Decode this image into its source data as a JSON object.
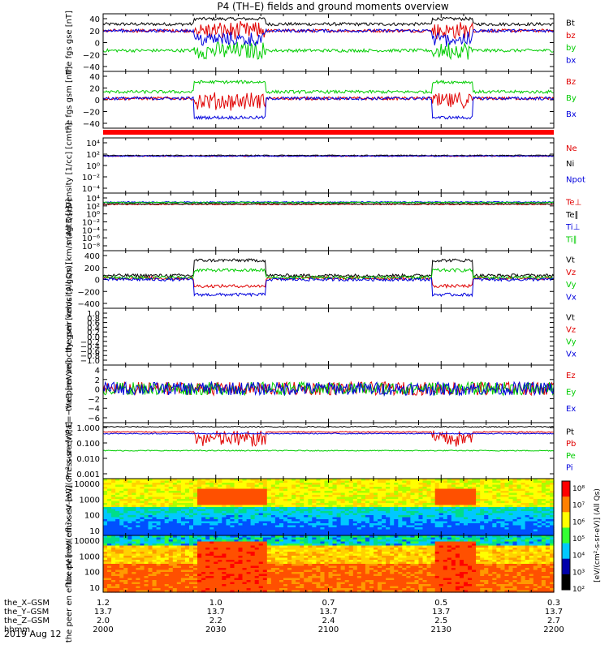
{
  "title": "P4 (TH–E) fields and ground moments overview",
  "date_label": "2019 Aug 12",
  "colorbar_label": "[eV/(cm²-s-sr-eV)] (All Qs)",
  "colorbar_ticks": [
    "10⁸",
    "10⁷",
    "10⁶",
    "10⁵",
    "10⁴",
    "10³",
    "10²"
  ],
  "colors": {
    "black": "#000000",
    "red": "#e00000",
    "green": "#00cc00",
    "blue": "#0000dd"
  },
  "x_axis": {
    "row_labels": [
      "the_X–GSM",
      "the_Y–GSM",
      "the_Z–GSM",
      "hhmm"
    ],
    "ticks": [
      {
        "x_gsm": "1.2",
        "y_gsm": "13.7",
        "z_gsm": "2.0",
        "hhmm": "2000"
      },
      {
        "x_gsm": "1.0",
        "y_gsm": "13.7",
        "z_gsm": "2.2",
        "hhmm": "2030"
      },
      {
        "x_gsm": "0.7",
        "y_gsm": "13.7",
        "z_gsm": "2.4",
        "hhmm": "2100"
      },
      {
        "x_gsm": "0.5",
        "y_gsm": "13.7",
        "z_gsm": "2.5",
        "hhmm": "2130"
      },
      {
        "x_gsm": "0.3",
        "y_gsm": "13.7",
        "z_gsm": "2.7",
        "hhmm": "2200"
      }
    ]
  },
  "chart_data": [
    {
      "type": "line",
      "ylabel": "the fgs gse [nT]",
      "yticks": [
        "40",
        "20",
        "0",
        "−20",
        "−40"
      ],
      "ylim": [
        -40,
        40
      ],
      "x_range_hhmm": [
        "2000",
        "2200"
      ],
      "series": [
        {
          "name": "Bt",
          "color": "black",
          "baseline": 28,
          "note": "~30 nT, spikes to ~40 at 2035 and 2135"
        },
        {
          "name": "bz",
          "color": "red",
          "baseline": 18
        },
        {
          "name": "by",
          "color": "green",
          "baseline": -12
        },
        {
          "name": "bx",
          "color": "blue",
          "baseline": 18
        }
      ]
    },
    {
      "type": "line",
      "ylabel": "the fgs gsm [nT]",
      "yticks": [
        "40",
        "20",
        "0",
        "−20",
        "−40"
      ],
      "ylim": [
        -50,
        45
      ],
      "series": [
        {
          "name": "Bz",
          "color": "red",
          "baseline": 0
        },
        {
          "name": "By",
          "color": "green",
          "baseline": 12,
          "note": "rises to ~35 at 2035–2050 and ~30 at 2135–2145"
        },
        {
          "name": "Bx",
          "color": "blue",
          "baseline": 0,
          "note": "drops to ~−40 at 2035–2050 and 2135–2145"
        }
      ]
    },
    {
      "type": "line",
      "ylabel": "Density [1/cc] [cm⁻³]",
      "yticks": [
        "10⁴",
        "10²",
        "10⁰",
        "10⁻²",
        "10⁻⁴"
      ],
      "ylim_log10": [
        -4,
        4
      ],
      "series": [
        {
          "name": "Ne",
          "color": "red",
          "log_baseline": 1.5
        },
        {
          "name": "Ni",
          "color": "black",
          "log_baseline": 1.6
        },
        {
          "name": "Npot",
          "color": "blue",
          "log_baseline": 1.5
        }
      ]
    },
    {
      "type": "line",
      "ylabel": "magt3 [eV]",
      "yticks": [
        "10⁴",
        "10²",
        "10⁰",
        "10⁻²",
        "10⁻⁴",
        "10⁻⁶",
        "10⁻⁸"
      ],
      "ylim_log10": [
        -8,
        4
      ],
      "series": [
        {
          "name": "Te⊥",
          "color": "red",
          "log_baseline": 2.0
        },
        {
          "name": "Te∥",
          "color": "black",
          "log_baseline": 2.1
        },
        {
          "name": "Ti⊥",
          "color": "blue",
          "log_baseline": 2.5
        },
        {
          "name": "Ti∥",
          "color": "green",
          "log_baseline": 2.4
        }
      ]
    },
    {
      "type": "line",
      "ylabel": "the peir velocity gsm [km/s (All Qs)]",
      "yticks": [
        "400",
        "200",
        "0",
        "−200",
        "−400"
      ],
      "ylim": [
        -400,
        400
      ],
      "series": [
        {
          "name": "Vt",
          "color": "black",
          "baseline": 60,
          "note": "~300 km/s at 2035–2050 and 2135–2145"
        },
        {
          "name": "Vz",
          "color": "red",
          "baseline": 20
        },
        {
          "name": "Vy",
          "color": "green",
          "baseline": 30
        },
        {
          "name": "Vx",
          "color": "blue",
          "baseline": 0,
          "note": "~−250 km/s at 2035–2050 and 2135–2145"
        }
      ]
    },
    {
      "type": "line",
      "ylabel": "the peer velocity gsm [km/s (All Qs)]",
      "yticks": [
        "1.0",
        "0.8",
        "0.6",
        "0.4",
        "0.2",
        "0.0",
        "−0.2",
        "−0.4",
        "−0.6",
        "−0.8",
        "−1.0"
      ],
      "ylim": [
        -1,
        1
      ],
      "series": [
        {
          "name": "Vt",
          "color": "black",
          "values": []
        },
        {
          "name": "Vz",
          "color": "red",
          "values": []
        },
        {
          "name": "Vy",
          "color": "green",
          "values": []
        },
        {
          "name": "Vx",
          "color": "blue",
          "values": []
        }
      ]
    },
    {
      "type": "line",
      "ylabel": "E=−VxB [mV/m]",
      "yticks": [
        "4",
        "2",
        "0",
        "−2",
        "−4",
        "−6"
      ],
      "ylim": [
        -6,
        4
      ],
      "series": [
        {
          "name": "Ez",
          "color": "red",
          "baseline": 0
        },
        {
          "name": "Ey",
          "color": "green",
          "baseline": 0
        },
        {
          "name": "Ex",
          "color": "blue",
          "baseline": 0
        }
      ]
    },
    {
      "type": "line",
      "ylabel": "Pressure [nPa]",
      "yticks": [
        "1.000",
        "0.100",
        "0.010",
        "0.001"
      ],
      "ylim_log10": [
        -3,
        0
      ],
      "series": [
        {
          "name": "Pt",
          "color": "black",
          "log_baseline": -0.1
        },
        {
          "name": "Pb",
          "color": "red",
          "log_baseline": -0.4
        },
        {
          "name": "Pe",
          "color": "green",
          "log_baseline": -1.5
        },
        {
          "name": "Pi",
          "color": "blue",
          "log_baseline": -0.5
        }
      ]
    },
    {
      "type": "heatmap",
      "ylabel": "the peir en eflux eV [eV/(cm²-s-sr-eV)]",
      "yticks": [
        "10000",
        "1000",
        "100",
        "10"
      ],
      "ylim_log10": [
        0.7,
        4.4
      ],
      "z_log10_range": [
        2,
        8
      ],
      "colormap": "rainbow"
    },
    {
      "type": "heatmap",
      "ylabel": "the peer en eflux eV [eV/(cm²-s-sr-eV)]",
      "yticks": [
        "10000",
        "1000",
        "100",
        "10"
      ],
      "ylim_log10": [
        0.7,
        4.4
      ],
      "z_log10_range": [
        2,
        8
      ],
      "colormap": "rainbow"
    }
  ]
}
